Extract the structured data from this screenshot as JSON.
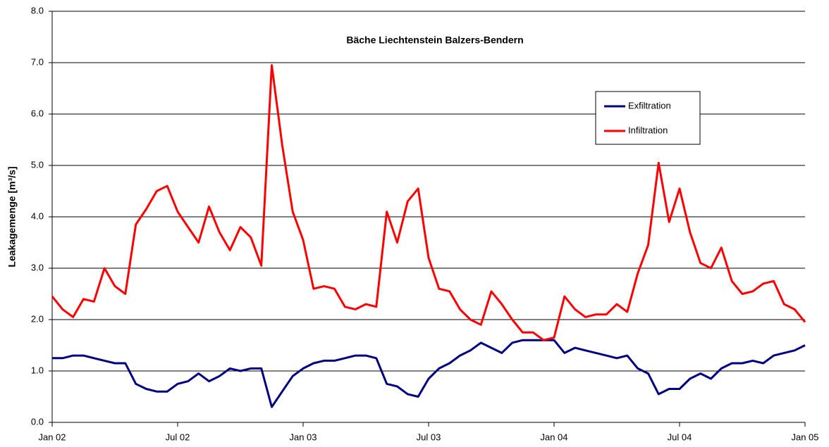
{
  "chart_data": {
    "type": "line",
    "title": "Bäche Liechtenstein Balzers-Bendern",
    "y_label": "Leakagemenge [m³/s]",
    "x": [
      0,
      0.5,
      1,
      1.5,
      2,
      2.5,
      3,
      3.5,
      4,
      4.5,
      5,
      5.5,
      6,
      6.5,
      7,
      7.5,
      8,
      8.5,
      9,
      9.5,
      10,
      10.5,
      11,
      11.5,
      12,
      12.5,
      13,
      13.5,
      14,
      14.5,
      15,
      15.5,
      16,
      16.5,
      17,
      17.5,
      18,
      18.5,
      19,
      19.5,
      20,
      20.5,
      21,
      21.5,
      22,
      22.5,
      23,
      23.5,
      24,
      24.5,
      25,
      25.5,
      26,
      26.5,
      27,
      27.5,
      28,
      28.5,
      29,
      29.5,
      30,
      30.5,
      31,
      31.5,
      32,
      32.5,
      33,
      33.5,
      34,
      34.5,
      35,
      35.5,
      36
    ],
    "xlim": [
      0,
      36
    ],
    "xticks": [
      {
        "value": 0,
        "label": "Jan 02"
      },
      {
        "value": 6,
        "label": "Jul 02"
      },
      {
        "value": 12,
        "label": "Jan 03"
      },
      {
        "value": 18,
        "label": "Jul 03"
      },
      {
        "value": 24,
        "label": "Jan 04"
      },
      {
        "value": 30,
        "label": "Jul 04"
      },
      {
        "value": 36,
        "label": "Jan 05"
      }
    ],
    "ylim": [
      0,
      8
    ],
    "yticks": [
      {
        "value": 0,
        "label": "0.0"
      },
      {
        "value": 1,
        "label": "1.0"
      },
      {
        "value": 2,
        "label": "2.0"
      },
      {
        "value": 3,
        "label": "3.0"
      },
      {
        "value": 4,
        "label": "4.0"
      },
      {
        "value": 5,
        "label": "5.0"
      },
      {
        "value": 6,
        "label": "6.0"
      },
      {
        "value": 7,
        "label": "7.0"
      },
      {
        "value": 8,
        "label": "8.0"
      }
    ],
    "grid": true,
    "legend": "upper right",
    "series": [
      {
        "name": "Exfiltration",
        "color": "#000080",
        "values": [
          1.25,
          1.25,
          1.3,
          1.3,
          1.25,
          1.2,
          1.15,
          1.15,
          0.75,
          0.65,
          0.6,
          0.6,
          0.75,
          0.8,
          0.95,
          0.8,
          0.9,
          1.05,
          1.0,
          1.05,
          1.05,
          0.3,
          0.6,
          0.9,
          1.05,
          1.15,
          1.2,
          1.2,
          1.25,
          1.3,
          1.3,
          1.25,
          0.75,
          0.7,
          0.55,
          0.5,
          0.85,
          1.05,
          1.15,
          1.3,
          1.4,
          1.55,
          1.45,
          1.35,
          1.55,
          1.6,
          1.6,
          1.6,
          1.6,
          1.35,
          1.45,
          1.4,
          1.35,
          1.3,
          1.25,
          1.3,
          1.05,
          0.95,
          0.55,
          0.65,
          0.65,
          0.85,
          0.95,
          0.85,
          1.05,
          1.15,
          1.15,
          1.2,
          1.15,
          1.3,
          1.35,
          1.4,
          1.5
        ]
      },
      {
        "name": "Infiltration",
        "color": "#ff0000",
        "values": [
          2.45,
          2.2,
          2.05,
          2.4,
          2.35,
          3.0,
          2.65,
          2.5,
          3.85,
          4.15,
          4.5,
          4.6,
          4.1,
          3.8,
          3.5,
          4.2,
          3.7,
          3.35,
          3.8,
          3.6,
          3.05,
          6.95,
          5.4,
          4.1,
          3.55,
          2.6,
          2.65,
          2.6,
          2.25,
          2.2,
          2.3,
          2.25,
          4.1,
          3.5,
          4.3,
          4.55,
          3.2,
          2.6,
          2.55,
          2.2,
          2.0,
          1.9,
          2.55,
          2.3,
          2.0,
          1.75,
          1.75,
          1.6,
          1.65,
          2.45,
          2.2,
          2.05,
          2.1,
          2.1,
          2.3,
          2.15,
          2.9,
          3.45,
          5.05,
          3.9,
          4.55,
          3.7,
          3.1,
          3.0,
          3.4,
          2.75,
          2.5,
          2.55,
          2.7,
          2.75,
          2.3,
          2.2,
          1.95
        ]
      }
    ]
  }
}
